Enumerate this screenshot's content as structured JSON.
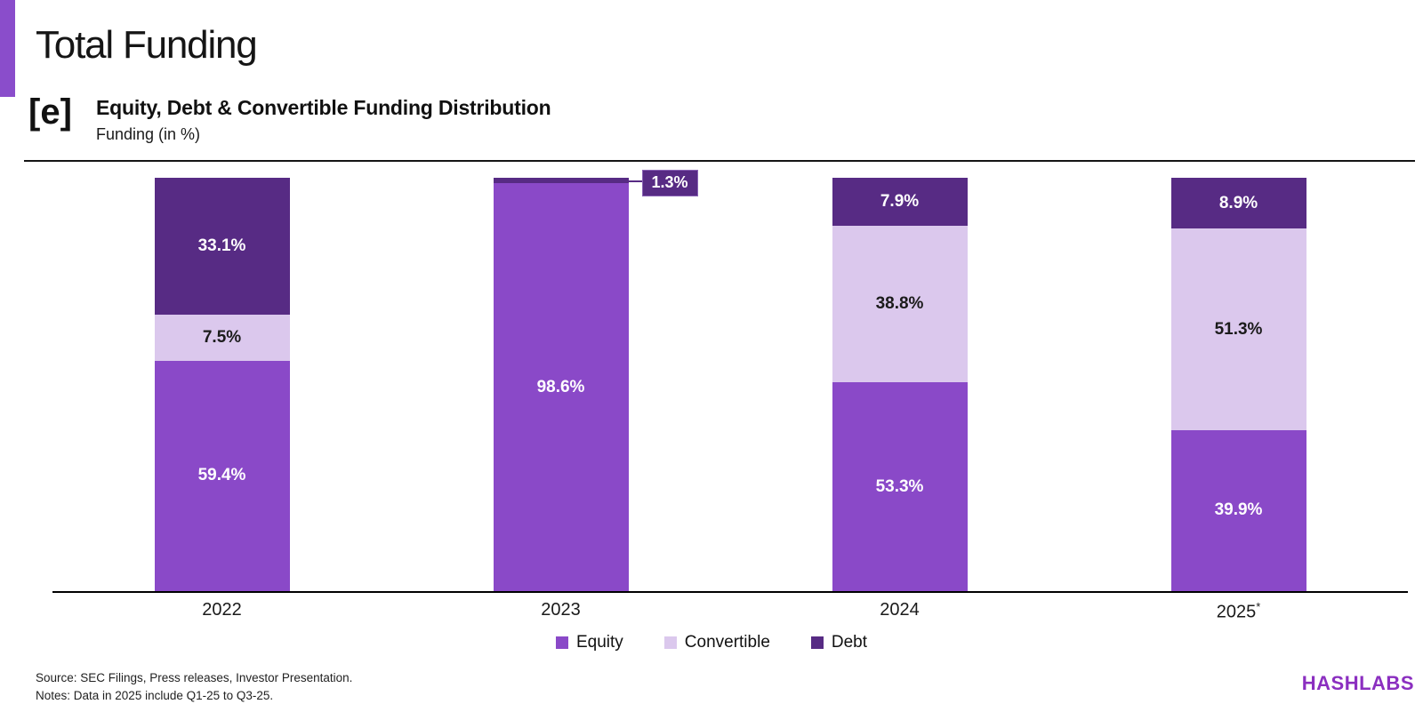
{
  "header": {
    "page_title": "Total Funding",
    "logo_text": "[e]",
    "chart_title": "Equity, Debt & Convertible Funding Distribution",
    "chart_subtitle": "Funding (in %)"
  },
  "chart_data": {
    "type": "bar",
    "stacked": true,
    "unit": "%",
    "ylim": [
      0,
      100
    ],
    "grid": false,
    "legend_position": "bottom",
    "show_label_min_pct": 4,
    "categories": [
      "2022",
      "2023",
      "2024",
      "2025*"
    ],
    "series": [
      {
        "name": "Equity",
        "color": "#8a49c8",
        "label_color": "#ffffff",
        "values": [
          59.4,
          98.6,
          53.3,
          39.9
        ]
      },
      {
        "name": "Convertible",
        "color": "#dbc8ed",
        "label_color": "#1b1b1b",
        "values": [
          7.5,
          0.1,
          38.8,
          51.3
        ]
      },
      {
        "name": "Debt",
        "color": "#572b84",
        "label_color": "#ffffff",
        "values": [
          33.1,
          1.3,
          7.9,
          8.9
        ]
      }
    ],
    "callouts": [
      {
        "category": "2023",
        "series": "Debt",
        "label": "1.3%"
      }
    ]
  },
  "footer": {
    "source": "Source: SEC Filings, Press releases, Investor Presentation.",
    "notes": "Notes: Data in 2025 include Q1-25 to Q3-25.",
    "brand": "HASHLABS"
  },
  "colors": {
    "accent": "#8a4dcb",
    "axis": "#000000",
    "brand": "#8b2fc0",
    "callout_bg": "#572b84"
  }
}
